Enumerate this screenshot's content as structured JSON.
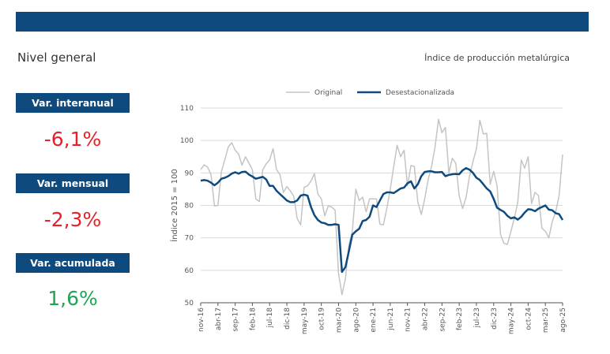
{
  "header": {
    "title": "Nivel general",
    "subtitle": "Índice de producción metalúrgica"
  },
  "kpis": [
    {
      "label": "Var. interanual",
      "value": "-6,1%",
      "color": "#e8202a"
    },
    {
      "label": "Var. mensual",
      "value": "-2,3%",
      "color": "#e8202a"
    },
    {
      "label": "Var. acumulada",
      "value": "1,6%",
      "color": "#1fa555"
    }
  ],
  "chart_data": {
    "type": "line",
    "ylabel": "Índice 2015 = 100",
    "ylim": [
      50,
      110
    ],
    "yticks": [
      50,
      60,
      70,
      80,
      90,
      100,
      110
    ],
    "xtick_labels": [
      "nov-16",
      "abr-17",
      "sep-17",
      "feb-18",
      "jul-18",
      "dic-18",
      "may-19",
      "oct-19",
      "mar-20",
      "ago-20",
      "ene-21",
      "jun-21",
      "nov-21",
      "abr-22",
      "sep-22",
      "feb-23",
      "jul-23",
      "dic-23",
      "may-24",
      "oct-24",
      "mar-25",
      "ago-25"
    ],
    "xtick_every": 5,
    "legend_position": "top",
    "series": [
      {
        "name": "Original",
        "color": "#c4c4c4",
        "values": [
          91.0,
          92.5,
          91.8,
          89.5,
          79.8,
          80.0,
          90.5,
          94.0,
          98.0,
          99.3,
          97.0,
          95.8,
          92.4,
          95.0,
          93.0,
          91.0,
          82.0,
          81.2,
          91.0,
          92.8,
          94.0,
          97.5,
          91.0,
          89.5,
          84.0,
          85.8,
          84.5,
          82.8,
          76.0,
          74.0,
          85.6,
          86.0,
          87.5,
          89.8,
          83.5,
          82.0,
          76.8,
          79.8,
          79.5,
          78.5,
          59.0,
          52.5,
          57.5,
          68.0,
          72.0,
          85.0,
          81.5,
          82.5,
          78.0,
          82.0,
          82.0,
          82.0,
          74.2,
          74.0,
          79.0,
          85.0,
          92.0,
          98.5,
          95.0,
          97.0,
          86.0,
          92.3,
          92.0,
          81.0,
          77.2,
          82.0,
          88.0,
          92.0,
          98.0,
          106.5,
          102.4,
          104.0,
          90.0,
          94.5,
          93.0,
          83.0,
          79.0,
          82.5,
          89.0,
          93.5,
          97.5,
          106.2,
          102.0,
          102.2,
          86.5,
          90.5,
          86.0,
          71.0,
          68.3,
          68.0,
          72.0,
          76.0,
          81.0,
          94.0,
          91.5,
          95.0,
          80.5,
          84.0,
          83.0,
          73.0,
          72.0,
          70.0,
          75.0,
          78.0,
          83.0,
          95.7
        ]
      },
      {
        "name": "Desestacionalizada",
        "color": "#0e4a7d",
        "values": [
          87.6,
          87.8,
          87.6,
          87.0,
          86.2,
          87.0,
          88.2,
          88.5,
          89.0,
          89.8,
          90.2,
          89.8,
          90.3,
          90.4,
          89.5,
          88.9,
          88.2,
          88.5,
          88.8,
          88.0,
          86.0,
          86.0,
          84.5,
          83.5,
          82.5,
          81.5,
          81.0,
          81.0,
          81.5,
          83.0,
          83.3,
          83.0,
          79.5,
          77.0,
          75.5,
          74.7,
          74.5,
          74.0,
          74.0,
          74.2,
          74.0,
          59.5,
          61.0,
          66.0,
          71.0,
          72.0,
          72.8,
          75.2,
          75.5,
          76.5,
          80.0,
          79.5,
          81.5,
          83.5,
          84.0,
          84.0,
          83.8,
          84.5,
          85.2,
          85.5,
          86.8,
          87.4,
          85.2,
          86.5,
          89.0,
          90.3,
          90.5,
          90.5,
          90.2,
          90.2,
          90.3,
          89.0,
          89.4,
          89.6,
          89.7,
          89.6,
          90.8,
          91.5,
          91.0,
          90.0,
          88.5,
          87.8,
          86.5,
          85.2,
          84.3,
          82.0,
          79.3,
          78.6,
          78.0,
          76.8,
          76.0,
          76.3,
          75.6,
          76.5,
          77.8,
          78.8,
          78.7,
          78.2,
          79.0,
          79.5,
          80.0,
          78.7,
          78.5,
          77.6,
          77.3,
          75.5
        ]
      }
    ]
  }
}
